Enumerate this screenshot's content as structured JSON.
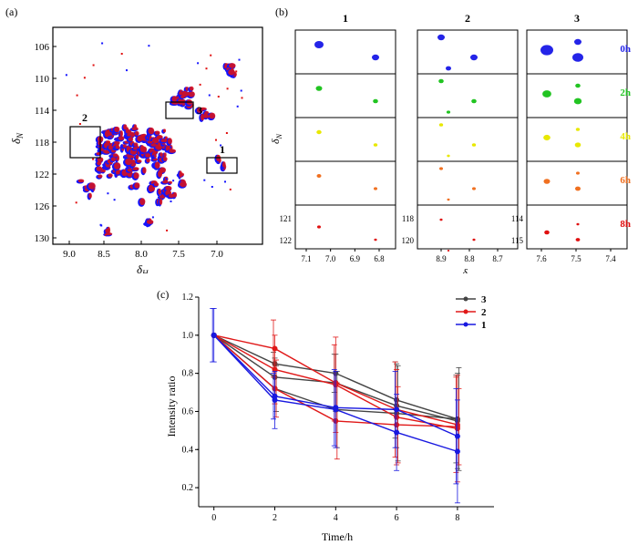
{
  "figure": {
    "panel_a_label": "(a)",
    "panel_b_label": "(b)",
    "panel_c_label": "(c)"
  },
  "panel_a": {
    "xlabel_main": "δ",
    "xlabel_sub": "H",
    "ylabel_main": "δ",
    "ylabel_sub": "N",
    "x_ticks": [
      "9.0",
      "8.5",
      "8.0",
      "7.5",
      "7.0"
    ],
    "y_ticks": [
      "106",
      "110",
      "114",
      "118",
      "122",
      "126",
      "130"
    ],
    "box_labels": [
      "1",
      "2",
      "3"
    ],
    "colors": {
      "series_a": "#1414ff",
      "series_b": "#e01010"
    }
  },
  "panel_b": {
    "column_titles": [
      "1",
      "2",
      "3"
    ],
    "row_labels": [
      "0h",
      "2h",
      "4h",
      "6h",
      "8h"
    ],
    "row_colors": [
      "#2424e8",
      "#22c422",
      "#e8e800",
      "#f07020",
      "#e01010"
    ],
    "col1_x_ticks": [
      "7.1",
      "7.0",
      "6.9",
      "6.8"
    ],
    "col1_y_ticks": [
      "121",
      "122"
    ],
    "col2_x_ticks": [
      "8.9",
      "8.8",
      "8.7"
    ],
    "col2_y_ticks": [
      "118",
      "120"
    ],
    "col3_x_ticks": [
      "7.6",
      "7.5",
      "7.4"
    ],
    "col3_y_ticks": [
      "114",
      "115"
    ],
    "xlabel_main": "δ",
    "xlabel_sub": "H",
    "ylabel_main": "δ",
    "ylabel_sub": "N"
  },
  "chart_data": {
    "type": "line",
    "xlabel": "Time/h",
    "ylabel": "Intensity ratio",
    "x": [
      0,
      2,
      4,
      6,
      8
    ],
    "xlim": [
      -0.5,
      9.2
    ],
    "ylim": [
      0.1,
      1.2
    ],
    "x_ticks": [
      "0",
      "2",
      "4",
      "6",
      "8"
    ],
    "y_ticks": [
      "0.2",
      "0.4",
      "0.6",
      "0.8",
      "1.0",
      "1.2"
    ],
    "legend_position": "top-right",
    "legend": [
      {
        "label": "3",
        "color": "#444444"
      },
      {
        "label": "2",
        "color": "#e01818"
      },
      {
        "label": "1",
        "color": "#1818e0"
      }
    ],
    "series": [
      {
        "group": "3",
        "color": "#444444",
        "values": [
          1.0,
          0.85,
          0.8,
          0.66,
          0.56
        ],
        "errors": [
          0,
          0.06,
          0.1,
          0.2,
          0.23
        ]
      },
      {
        "group": "3",
        "color": "#444444",
        "values": [
          1.0,
          0.78,
          0.75,
          0.63,
          0.55
        ],
        "errors": [
          0,
          0.1,
          0.15,
          0.22,
          0.25
        ]
      },
      {
        "group": "3",
        "color": "#444444",
        "values": [
          1.0,
          0.72,
          0.61,
          0.59,
          0.56
        ],
        "errors": [
          0,
          0.12,
          0.2,
          0.25,
          0.27
        ]
      },
      {
        "group": "2",
        "color": "#e01818",
        "values": [
          1.0,
          0.93,
          0.75,
          0.61,
          0.53
        ],
        "errors": [
          0,
          0.15,
          0.2,
          0.25,
          0.25
        ]
      },
      {
        "group": "2",
        "color": "#e01818",
        "values": [
          1.0,
          0.82,
          0.74,
          0.57,
          0.51
        ],
        "errors": [
          0,
          0.18,
          0.25,
          0.25,
          0.28
        ]
      },
      {
        "group": "2",
        "color": "#e01818",
        "values": [
          1.0,
          0.72,
          0.55,
          0.53,
          0.52
        ],
        "errors": [
          0,
          0.15,
          0.2,
          0.2,
          0.2
        ]
      },
      {
        "group": "1",
        "color": "#1818e0",
        "values": [
          1.0,
          0.68,
          0.62,
          0.61,
          0.47
        ],
        "errors": [
          0.14,
          0.12,
          0.2,
          0.2,
          0.25
        ]
      },
      {
        "group": "1",
        "color": "#1818e0",
        "values": [
          1.0,
          0.66,
          0.61,
          0.49,
          0.39
        ],
        "errors": [
          0.14,
          0.15,
          0.2,
          0.2,
          0.27
        ]
      }
    ]
  }
}
